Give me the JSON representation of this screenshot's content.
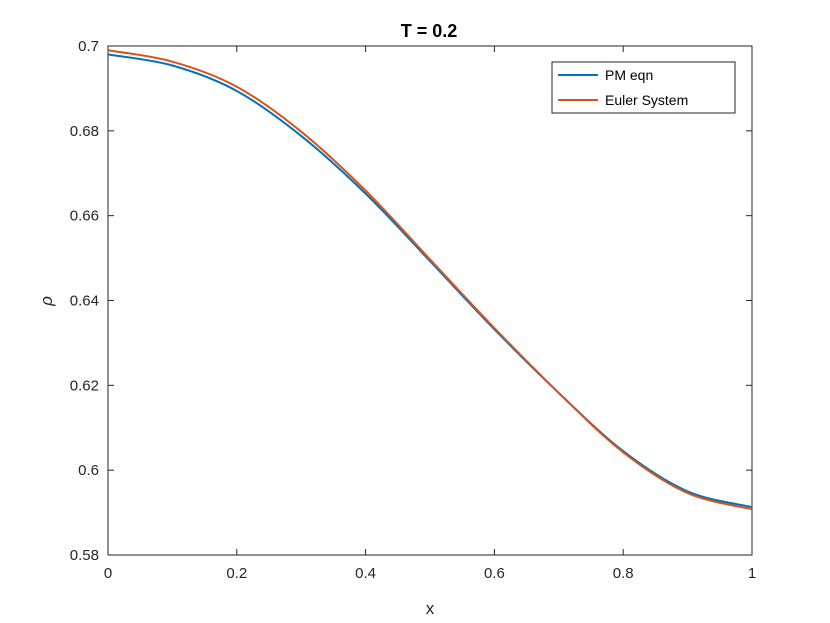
{
  "chart_data": {
    "type": "line",
    "title": "T = 0.2",
    "xlabel": "x",
    "ylabel": "ρ",
    "xlim": [
      0,
      1
    ],
    "ylim": [
      0.58,
      0.7
    ],
    "xticks": [
      "0",
      "0.2",
      "0.4",
      "0.6",
      "0.8",
      "1"
    ],
    "yticks": [
      "0.58",
      "0.6",
      "0.62",
      "0.64",
      "0.66",
      "0.68",
      "0.7"
    ],
    "legend_position": "top-right",
    "grid": false,
    "series": [
      {
        "name": "PM eqn",
        "color": "#0072BD",
        "x": [
          0,
          0.1,
          0.2,
          0.3,
          0.4,
          0.5,
          0.6,
          0.7,
          0.8,
          0.9,
          1
        ],
        "y": [
          0.698,
          0.6954,
          0.6894,
          0.6788,
          0.6652,
          0.6493,
          0.6332,
          0.6182,
          0.6045,
          0.595,
          0.5913
        ]
      },
      {
        "name": "Euler System",
        "color": "#D95319",
        "x": [
          0,
          0.1,
          0.2,
          0.3,
          0.4,
          0.5,
          0.6,
          0.7,
          0.8,
          0.9,
          1
        ],
        "y": [
          0.699,
          0.6963,
          0.6904,
          0.6798,
          0.6659,
          0.6497,
          0.6335,
          0.6182,
          0.6042,
          0.5946,
          0.5908
        ]
      }
    ]
  }
}
